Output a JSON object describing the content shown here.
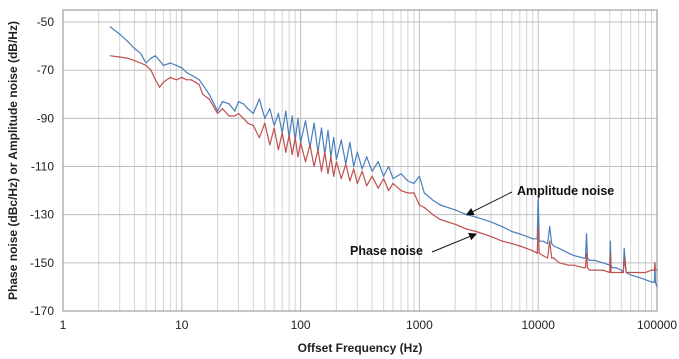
{
  "chart_data": {
    "type": "line",
    "title": "",
    "xlabel": "Offset Frequency (Hz)",
    "ylabel": "Phase noise (dBc/Hz) or Amplitude noise (dB/Hz)",
    "x_scale": "log",
    "xlim": [
      1,
      100000
    ],
    "ylim": [
      -170,
      -45
    ],
    "x_ticks": [
      {
        "value": 1,
        "label": "1"
      },
      {
        "value": 10,
        "label": "10"
      },
      {
        "value": 100,
        "label": "100"
      },
      {
        "value": 1000,
        "label": "1000"
      },
      {
        "value": 10000,
        "label": "10000"
      },
      {
        "value": 100000,
        "label": "100000"
      }
    ],
    "y_ticks": [
      {
        "value": -50,
        "label": "-50"
      },
      {
        "value": -70,
        "label": "-70"
      },
      {
        "value": -90,
        "label": "-90"
      },
      {
        "value": -110,
        "label": "-110"
      },
      {
        "value": -130,
        "label": "-130"
      },
      {
        "value": -150,
        "label": "-150"
      },
      {
        "value": -170,
        "label": "-170"
      }
    ],
    "grid": {
      "vertical_minor_log": true,
      "horizontal_major": true
    },
    "series": [
      {
        "name": "Amplitude noise",
        "color": "#4a7ebb",
        "x": [
          2.5,
          3,
          3.5,
          4,
          4.5,
          5,
          5.5,
          6,
          6.5,
          7,
          8,
          9,
          10,
          11,
          12,
          13,
          14,
          15,
          17,
          20,
          22,
          25,
          28,
          30,
          33,
          36,
          40,
          45,
          50,
          55,
          60,
          65,
          70,
          75,
          80,
          85,
          90,
          95,
          100,
          110,
          120,
          130,
          140,
          150,
          160,
          170,
          180,
          190,
          200,
          220,
          240,
          260,
          280,
          300,
          330,
          360,
          400,
          450,
          500,
          550,
          600,
          700,
          800,
          900,
          1000,
          1100,
          1300,
          1500,
          2000,
          2500,
          3000,
          4000,
          5000,
          6000,
          7000,
          8000,
          9000,
          9800,
          10000,
          10200,
          11000,
          12000,
          12500,
          13000,
          13500,
          15000,
          18000,
          20000,
          24000,
          25000,
          25500,
          26000,
          27000,
          30000,
          35000,
          40000,
          40500,
          41000,
          42000,
          45000,
          50000,
          52000,
          53000,
          55000,
          60000,
          70000,
          80000,
          90000,
          95000,
          96000,
          97000,
          100000
        ],
        "y": [
          -52,
          -55,
          -58,
          -61,
          -63,
          -67,
          -65,
          -64,
          -66,
          -68,
          -67,
          -68,
          -69,
          -71,
          -72,
          -73,
          -74,
          -76,
          -80,
          -87,
          -83,
          -84,
          -87,
          -83,
          -84,
          -86,
          -88,
          -82,
          -90,
          -86,
          -93,
          -88,
          -96,
          -87,
          -98,
          -89,
          -99,
          -90,
          -100,
          -91,
          -102,
          -92,
          -104,
          -94,
          -105,
          -95,
          -106,
          -98,
          -107,
          -99,
          -109,
          -100,
          -110,
          -104,
          -111,
          -106,
          -112,
          -108,
          -114,
          -110,
          -115,
          -113,
          -116,
          -117,
          -114,
          -121,
          -124,
          -126,
          -128,
          -130,
          -131,
          -133,
          -135,
          -137,
          -138,
          -139,
          -140,
          -140,
          -122,
          -141,
          -141,
          -142,
          -135,
          -142,
          -143,
          -144,
          -146,
          -147,
          -148,
          -148,
          -138,
          -148,
          -149,
          -149,
          -150,
          -151,
          -141,
          -151,
          -152,
          -152,
          -153,
          -154,
          -144,
          -154,
          -155,
          -156,
          -157,
          -158,
          -158,
          -150,
          -158,
          -160
        ]
      },
      {
        "name": "Phase noise",
        "color": "#c0504d",
        "x": [
          2.5,
          3,
          3.5,
          4,
          4.5,
          5,
          5.5,
          6,
          6.5,
          7,
          8,
          9,
          10,
          11,
          12,
          13,
          14,
          15,
          17,
          20,
          22,
          25,
          28,
          30,
          33,
          36,
          40,
          45,
          50,
          55,
          60,
          65,
          70,
          75,
          80,
          85,
          90,
          95,
          100,
          110,
          120,
          130,
          140,
          150,
          160,
          170,
          180,
          190,
          200,
          220,
          240,
          260,
          280,
          300,
          330,
          360,
          400,
          450,
          500,
          550,
          600,
          700,
          800,
          900,
          1000,
          1100,
          1300,
          1500,
          2000,
          2500,
          3000,
          4000,
          5000,
          6000,
          7000,
          8000,
          9000,
          9800,
          10000,
          10200,
          11000,
          12000,
          12500,
          13000,
          13500,
          15000,
          18000,
          20000,
          24000,
          25000,
          25500,
          26000,
          27000,
          30000,
          35000,
          40000,
          40500,
          41000,
          42000,
          45000,
          50000,
          52000,
          53000,
          55000,
          60000,
          70000,
          80000,
          90000,
          95000,
          96000,
          97000,
          100000
        ],
        "y": [
          -64,
          -64.5,
          -65,
          -66,
          -67,
          -68,
          -70,
          -74,
          -77,
          -75,
          -73,
          -74,
          -73,
          -74,
          -74,
          -75,
          -76,
          -80,
          -82,
          -88,
          -86,
          -89,
          -89,
          -88,
          -90,
          -92,
          -93,
          -98,
          -92,
          -101,
          -94,
          -103,
          -96,
          -104,
          -97,
          -105,
          -98,
          -106,
          -100,
          -108,
          -101,
          -110,
          -103,
          -112,
          -104,
          -113,
          -106,
          -114,
          -108,
          -115,
          -109,
          -116,
          -111,
          -117,
          -112,
          -118,
          -114,
          -119,
          -115,
          -120,
          -117,
          -120,
          -121,
          -121,
          -126,
          -127,
          -130,
          -132,
          -134,
          -136,
          -137,
          -139,
          -141,
          -142,
          -143,
          -144,
          -145,
          -146,
          -135,
          -146,
          -147,
          -148,
          -141,
          -148,
          -148,
          -150,
          -151,
          -151,
          -152,
          -152,
          -146,
          -152,
          -153,
          -153,
          -153,
          -154,
          -146,
          -154,
          -154,
          -154,
          -154,
          -154,
          -148,
          -154,
          -154,
          -154,
          -154,
          -153,
          -153,
          -150,
          -153,
          -153
        ]
      }
    ],
    "annotations": [
      {
        "text": "Amplitude noise",
        "target_series": "Amplitude noise",
        "target_x": 2500,
        "target_y": -130
      },
      {
        "text": "Phase noise",
        "target_series": "Phase noise",
        "target_x": 3000,
        "target_y": -138
      }
    ]
  }
}
